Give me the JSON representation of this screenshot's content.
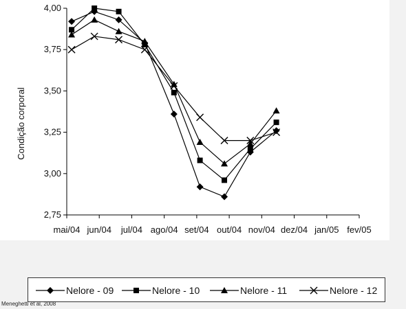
{
  "chart_data": {
    "type": "line",
    "title": "",
    "xlabel": "",
    "ylabel": "Condição corporal",
    "categories": [
      "mai/04",
      "jun/04",
      "jul/04",
      "ago/04",
      "set/04",
      "out/04",
      "nov/04",
      "dez/04",
      "jan/05",
      "fev/05"
    ],
    "yticks": [
      "4,00",
      "3,75",
      "3,50",
      "3,25",
      "3,00",
      "2,75"
    ],
    "ylim": [
      2.75,
      4.0
    ],
    "grid": false,
    "legend_position": "bottom",
    "series": [
      {
        "name": "Nelore - 09",
        "marker": "diamond",
        "x": [
          0.15,
          0.85,
          1.6,
          2.4,
          3.3,
          4.1,
          4.85,
          5.65,
          6.45
        ],
        "values": [
          3.92,
          3.98,
          3.93,
          3.79,
          3.36,
          2.92,
          2.86,
          3.13,
          3.26
        ]
      },
      {
        "name": "Nelore - 10",
        "marker": "square",
        "x": [
          0.15,
          0.85,
          1.6,
          2.4,
          3.3,
          4.1,
          4.85,
          5.65,
          6.45
        ],
        "values": [
          3.87,
          4.0,
          3.98,
          3.78,
          3.49,
          3.08,
          2.96,
          3.15,
          3.31
        ]
      },
      {
        "name": "Nelore - 11",
        "marker": "triangle",
        "x": [
          0.15,
          0.85,
          1.6,
          2.4,
          3.3,
          4.1,
          4.85,
          5.65,
          6.45
        ],
        "values": [
          3.84,
          3.93,
          3.86,
          3.8,
          3.54,
          3.19,
          3.06,
          3.18,
          3.38
        ]
      },
      {
        "name": "Nelore - 12",
        "marker": "x",
        "x": [
          0.15,
          0.85,
          1.6,
          2.4,
          3.3,
          4.1,
          4.85,
          5.65,
          6.45
        ],
        "values": [
          3.75,
          3.83,
          3.81,
          3.75,
          3.53,
          3.34,
          3.2,
          3.2,
          3.25
        ]
      }
    ]
  },
  "source_note": "Meneghetti et al, 2008"
}
